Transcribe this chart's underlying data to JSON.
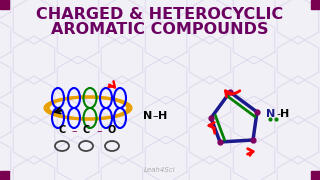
{
  "title_line1": "CHARGED & HETEROCYCLIC",
  "title_line2": "AROMATIC COMPOUNDS",
  "title_color": "#6B0060",
  "bg_color": "#f2f0f7",
  "watermark": "Leah4Sci",
  "hex_color": "#ddd8ec",
  "corner_square_color": "#7a0050",
  "title_fontsize": 11.5
}
